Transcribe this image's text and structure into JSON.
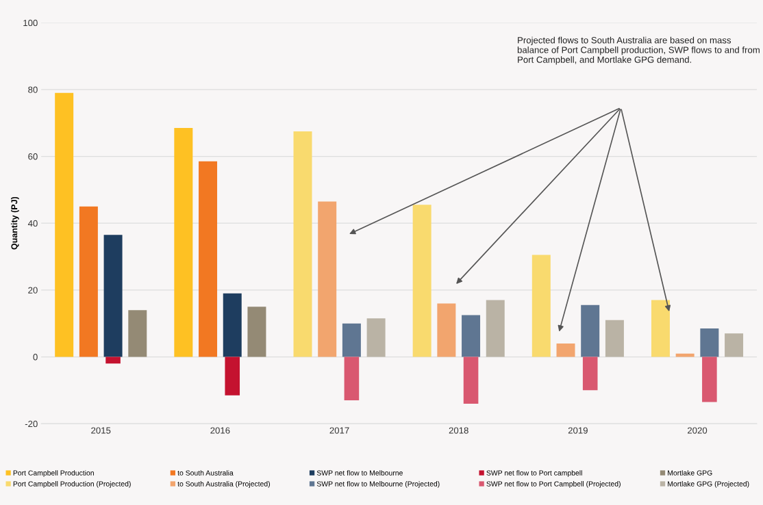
{
  "chart_data": {
    "type": "bar",
    "ylabel": "Quantity (PJ)",
    "categories": [
      "2015",
      "2016",
      "2017",
      "2018",
      "2019",
      "2020"
    ],
    "series": [
      {
        "name": "Port Campbell Production",
        "color": "#fec123",
        "values": [
          79,
          68.5,
          null,
          null,
          null,
          null
        ]
      },
      {
        "name": "Port Campbell Production (Projected)",
        "color": "#f9da6e",
        "values": [
          null,
          null,
          67.5,
          45.5,
          30.5,
          17
        ]
      },
      {
        "name": "to South Australia",
        "color": "#f27822",
        "values": [
          45,
          58.5,
          null,
          null,
          null,
          null
        ]
      },
      {
        "name": "to South Australia (Projected)",
        "color": "#f2a56e",
        "values": [
          null,
          null,
          46.5,
          16,
          4,
          1
        ]
      },
      {
        "name": "SWP net flow to Melbourne",
        "color": "#1e3d5f",
        "values": [
          36.5,
          19,
          null,
          null,
          null,
          null
        ]
      },
      {
        "name": "SWP net flow to Melbourne (Projected)",
        "color": "#5f7692",
        "values": [
          null,
          null,
          10,
          12.5,
          15.5,
          8.5
        ]
      },
      {
        "name": "SWP net flow to Port campbell",
        "color": "#c4122f",
        "values": [
          -2,
          -11.5,
          null,
          null,
          null,
          null
        ]
      },
      {
        "name": "SWP net flow to Port Campbell (Projected)",
        "color": "#d95870",
        "values": [
          null,
          null,
          -13,
          -14,
          -10,
          -13.5
        ]
      },
      {
        "name": "Mortlake GPG",
        "color": "#948a75",
        "values": [
          14,
          15,
          null,
          null,
          null,
          null
        ]
      },
      {
        "name": "Mortlake GPG (Projected)",
        "color": "#bab3a5",
        "values": [
          null,
          null,
          11.5,
          17,
          11,
          7
        ]
      }
    ],
    "ylim": [
      -20,
      100
    ],
    "yticks": [
      -20,
      0,
      20,
      40,
      60,
      80,
      100
    ],
    "grid": "y",
    "legend": "bottom",
    "annotations": [
      "Projected flows to South Australia are based on mass balance of Port Campbell production, SWP flows to and from Port Campbell, and Mortlake GPG demand."
    ]
  }
}
